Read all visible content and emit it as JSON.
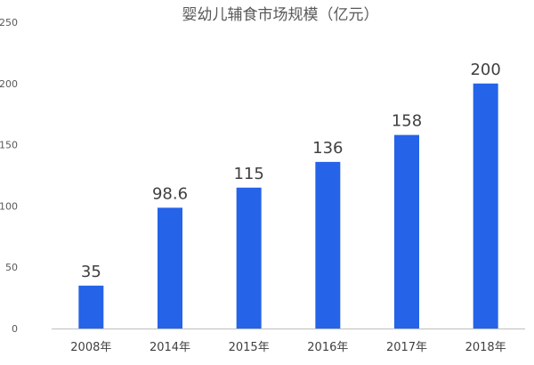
{
  "chart_data": {
    "type": "bar",
    "title": "婴幼儿辅食市场规模（亿元）",
    "xlabel": "",
    "ylabel": "",
    "categories": [
      "2008年",
      "2014年",
      "2015年",
      "2016年",
      "2017年",
      "2018年"
    ],
    "values": [
      35,
      98.6,
      115,
      136,
      158,
      200
    ],
    "data_labels": [
      "35",
      "98.6",
      "115",
      "136",
      "158",
      "200"
    ],
    "ylim": [
      0,
      250
    ],
    "yticks": [
      0,
      50,
      100,
      150,
      200,
      250
    ],
    "ytick_labels": [
      "0",
      "50",
      "100",
      "150",
      "200",
      "250"
    ],
    "grid": false,
    "legend": "none",
    "colors": {
      "bar": "#2563e8",
      "axis": "#bfbfbf",
      "text": "#404040"
    }
  }
}
